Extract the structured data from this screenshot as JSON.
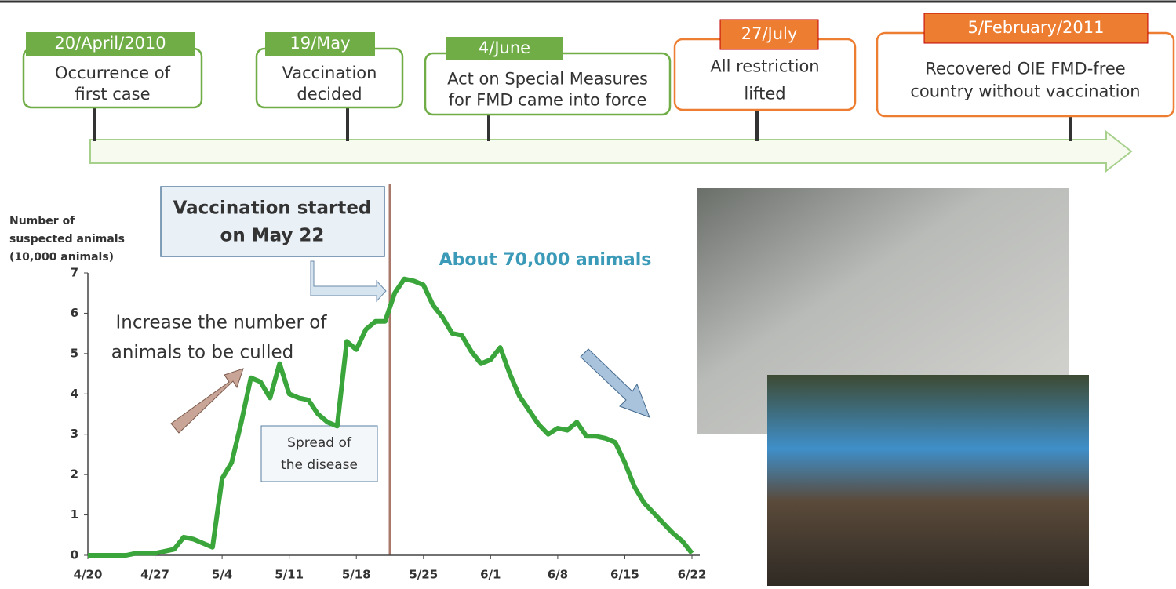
{
  "timeline": {
    "events": [
      {
        "date": "20/April/2010",
        "label": [
          "Occurrence of",
          "first case"
        ]
      },
      {
        "date": "19/May",
        "label": [
          "Vaccination",
          "decided"
        ]
      },
      {
        "date": "4/June",
        "label": [
          "Act on Special Measures",
          "for FMD came into force"
        ]
      },
      {
        "date": "27/July",
        "label": [
          "All restriction",
          "lifted"
        ]
      },
      {
        "date": "5/February/2011",
        "label": [
          "Recovered OIE FMD-free",
          "country without vaccination"
        ]
      }
    ]
  },
  "chart_data": {
    "type": "line",
    "y_label": [
      "Number of",
      "suspected animals",
      "(10,000 animals)"
    ],
    "annotations": {
      "vaccination": [
        "Vaccination started",
        "on May 22"
      ],
      "peak": "About 70,000 animals",
      "increase": [
        "Increase the number of",
        "animals to be culled"
      ],
      "spread": [
        "Spread of",
        "the disease"
      ]
    },
    "categories": [
      "4/20",
      null,
      null,
      null,
      null,
      null,
      null,
      "4/27",
      null,
      null,
      null,
      null,
      null,
      null,
      "5/4",
      null,
      null,
      null,
      null,
      null,
      null,
      "5/11",
      null,
      null,
      null,
      null,
      null,
      null,
      "5/18",
      null,
      null,
      null,
      null,
      null,
      null,
      "5/25",
      null,
      null,
      null,
      null,
      null,
      null,
      "6/1",
      null,
      null,
      null,
      null,
      null,
      null,
      "6/8",
      null,
      null,
      null,
      null,
      null,
      null,
      "6/15",
      null,
      null,
      null,
      null,
      null,
      null,
      "6/22"
    ],
    "series": [
      {
        "color": "#3aa53a",
        "values": [
          0,
          0,
          0,
          0,
          0,
          0.05,
          0.05,
          0.05,
          0.1,
          0.15,
          0.45,
          0.4,
          0.3,
          0.2,
          1.9,
          2.3,
          3.3,
          4.4,
          4.3,
          3.9,
          4.75,
          4.0,
          3.9,
          3.85,
          3.5,
          3.3,
          3.2,
          5.3,
          5.1,
          5.6,
          5.8,
          5.8,
          6.5,
          6.85,
          6.8,
          6.7,
          6.2,
          5.9,
          5.5,
          5.45,
          5.05,
          4.75,
          4.85,
          5.15,
          4.5,
          3.95,
          3.6,
          3.25,
          3.0,
          3.15,
          3.1,
          3.3,
          2.95,
          2.95,
          2.9,
          2.8,
          2.3,
          1.7,
          1.3,
          1.05,
          0.8,
          0.55,
          0.35,
          0.05
        ]
      }
    ],
    "ylim": [
      0,
      7
    ],
    "yticks": [
      0,
      1,
      2,
      3,
      4,
      5,
      6,
      7
    ]
  }
}
